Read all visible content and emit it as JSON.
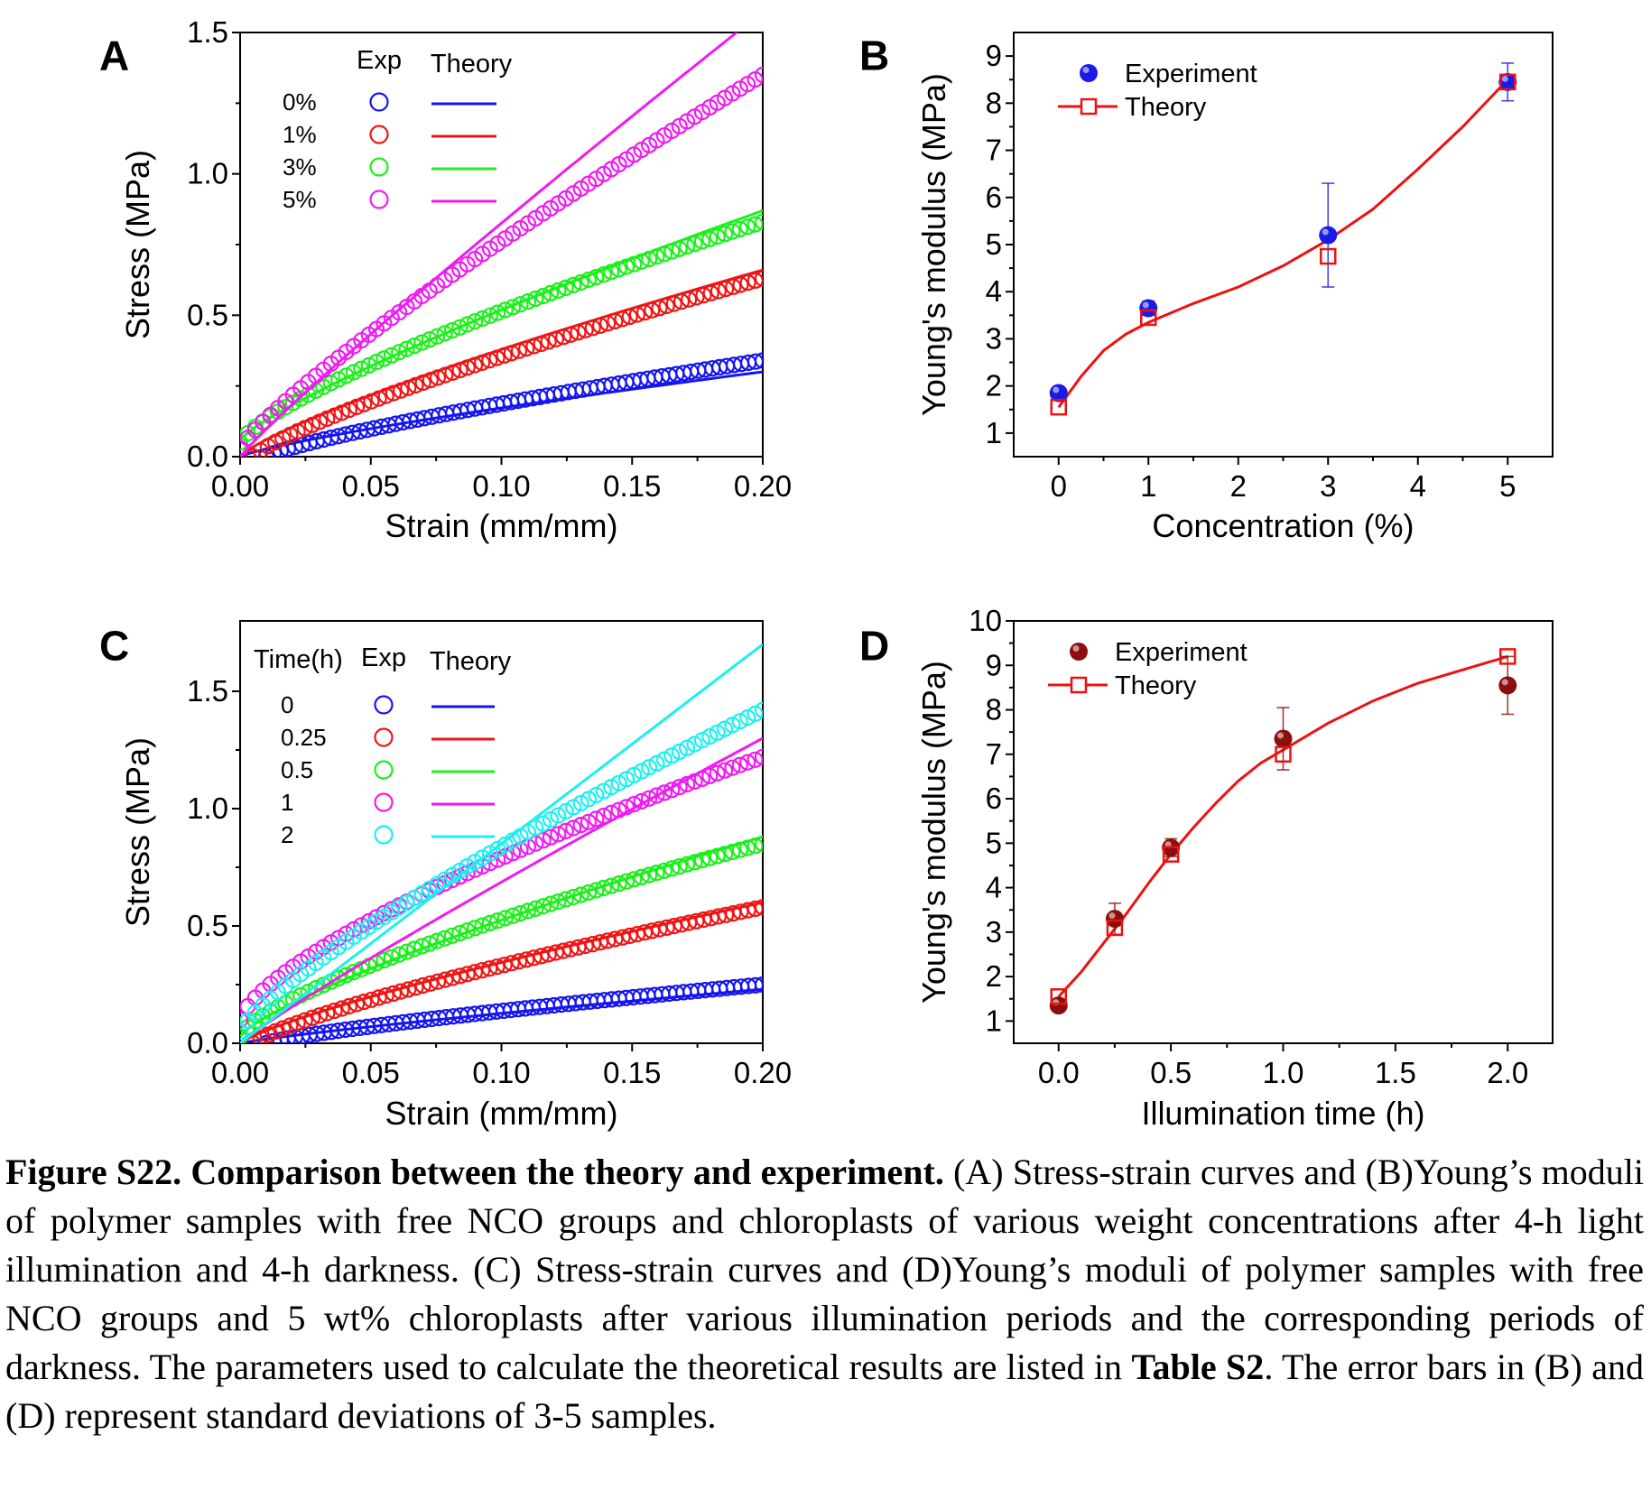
{
  "caption": {
    "lead": "Figure S22. Comparison between the theory and experiment.",
    "part1": " (A) Stress-strain curves and (B)Young’s moduli of polymer samples with free NCO groups and chloroplasts of various weight concentrations after 4-h light illumination and 4-h darkness. (C) Stress-strain curves and (D)Young’s moduli of polymer samples with free NCO groups and 5 wt% chloroplasts after various illumination periods and the corresponding periods of darkness. The parameters used to calculate the theoretical results are listed in ",
    "table_ref": "Table S2",
    "part2": ". The error bars in (B) and (D) represent standard deviations of 3-5 samples."
  },
  "colors": {
    "blue": "#1515f0",
    "red": "#f01515",
    "green": "#1bf01b",
    "magenta": "#f01bf0",
    "cyan": "#1bf0f0",
    "darkred": "#8b0f0f",
    "exp_blue": "#1a1ae6",
    "theory_red": "#ee1111"
  },
  "chart_data": [
    {
      "panel": "A",
      "type": "line",
      "xlabel": "Strain (mm/mm)",
      "ylabel": "Stress (MPa)",
      "xlim": [
        0,
        0.2
      ],
      "ylim": [
        0,
        1.5
      ],
      "xticks": [
        "0.00",
        "0.05",
        "0.10",
        "0.15",
        "0.20"
      ],
      "yticks": [
        "0.0",
        "0.5",
        "1.0",
        "1.5"
      ],
      "legend_title": "",
      "legend_headers": [
        "Exp",
        "Theory"
      ],
      "series": [
        {
          "name": "0%",
          "color": "blue",
          "exp": {
            "x0": 0.01,
            "y0": 0.0,
            "x1": 0.2,
            "y1": 0.34,
            "p": 0.8
          },
          "theory": {
            "x0": 0.0,
            "y0": 0.0,
            "x1": 0.2,
            "y1": 0.3,
            "p": 0.8
          }
        },
        {
          "name": "1%",
          "color": "red",
          "exp": {
            "x0": 0.005,
            "y0": 0.0,
            "x1": 0.2,
            "y1": 0.63,
            "p": 0.8
          },
          "theory": {
            "x0": 0.0,
            "y0": 0.0,
            "x1": 0.2,
            "y1": 0.66,
            "p": 0.8
          }
        },
        {
          "name": "3%",
          "color": "green",
          "exp": {
            "x0": 0.0,
            "y0": 0.05,
            "x1": 0.2,
            "y1": 0.83,
            "p": 0.75
          },
          "theory": {
            "x0": 0.0,
            "y0": 0.06,
            "x1": 0.2,
            "y1": 0.87,
            "p": 0.82
          }
        },
        {
          "name": "5%",
          "color": "magenta",
          "exp": {
            "x0": 0.0,
            "y0": 0.03,
            "x1": 0.2,
            "y1": 1.35,
            "p": 0.85
          },
          "theory": {
            "x0": 0.0,
            "y0": 0.0,
            "x1": 0.19,
            "y1": 1.5,
            "p": 0.93
          }
        }
      ]
    },
    {
      "panel": "B",
      "type": "scatter",
      "xlabel": "Concentration (%)",
      "ylabel": "Young's modulus (MPa)",
      "xlim": [
        -0.5,
        5.5
      ],
      "ylim": [
        0.5,
        9.5
      ],
      "xticks": [
        "0",
        "1",
        "2",
        "3",
        "4",
        "5"
      ],
      "yticks": [
        "1",
        "2",
        "3",
        "4",
        "5",
        "6",
        "7",
        "8",
        "9"
      ],
      "legend": [
        "Experiment",
        "Theory"
      ],
      "experiment": {
        "x": [
          0,
          1,
          3,
          5
        ],
        "y": [
          1.85,
          3.65,
          5.2,
          8.45
        ],
        "err": [
          0.1,
          0.15,
          1.1,
          0.4
        ]
      },
      "theory_points": {
        "x": [
          0,
          1,
          3,
          5
        ],
        "y": [
          1.55,
          3.45,
          4.75,
          8.45
        ]
      },
      "theory_curve": {
        "x": [
          0,
          0.25,
          0.5,
          0.75,
          1,
          1.5,
          2,
          2.5,
          3,
          3.5,
          4,
          4.5,
          5
        ],
        "y": [
          1.55,
          2.2,
          2.75,
          3.1,
          3.35,
          3.75,
          4.1,
          4.55,
          5.1,
          5.75,
          6.6,
          7.5,
          8.5
        ]
      }
    },
    {
      "panel": "C",
      "type": "line",
      "xlabel": "Strain (mm/mm)",
      "ylabel": "Stress (MPa)",
      "xlim": [
        0,
        0.2
      ],
      "ylim": [
        0,
        1.8
      ],
      "xticks": [
        "0.00",
        "0.05",
        "0.10",
        "0.15",
        "0.20"
      ],
      "yticks": [
        "0.0",
        "0.5",
        "1.0",
        "1.5"
      ],
      "legend_title": "Time(h)",
      "legend_headers": [
        "Exp",
        "Theory"
      ],
      "series": [
        {
          "name": "0",
          "color": "blue",
          "exp": {
            "x0": 0.01,
            "y0": 0.0,
            "x1": 0.2,
            "y1": 0.25,
            "p": 0.8
          },
          "theory": {
            "x0": 0.0,
            "y0": 0.0,
            "x1": 0.2,
            "y1": 0.23,
            "p": 0.85
          }
        },
        {
          "name": "0.25",
          "color": "red",
          "exp": {
            "x0": 0.005,
            "y0": 0.0,
            "x1": 0.2,
            "y1": 0.58,
            "p": 0.78
          },
          "theory": {
            "x0": 0.0,
            "y0": 0.0,
            "x1": 0.2,
            "y1": 0.6,
            "p": 0.8
          }
        },
        {
          "name": "0.5",
          "color": "green",
          "exp": {
            "x0": 0.0,
            "y0": 0.03,
            "x1": 0.2,
            "y1": 0.85,
            "p": 0.72
          },
          "theory": {
            "x0": 0.0,
            "y0": 0.03,
            "x1": 0.2,
            "y1": 0.88,
            "p": 0.78
          }
        },
        {
          "name": "1",
          "color": "magenta",
          "exp": {
            "x0": 0.0,
            "y0": 0.1,
            "x1": 0.2,
            "y1": 1.22,
            "p": 0.7
          },
          "theory": {
            "x0": 0.0,
            "y0": 0.0,
            "x1": 0.2,
            "y1": 1.3,
            "p": 0.92
          }
        },
        {
          "name": "2",
          "color": "cyan",
          "exp": {
            "x0": 0.0,
            "y0": 0.05,
            "x1": 0.2,
            "y1": 1.42,
            "p": 0.8
          },
          "theory": {
            "x0": 0.0,
            "y0": 0.0,
            "x1": 0.2,
            "y1": 1.7,
            "p": 1.0
          }
        }
      ]
    },
    {
      "panel": "D",
      "type": "scatter",
      "xlabel": "Illumination time (h)",
      "ylabel": "Young's modulus (MPa)",
      "xlim": [
        -0.2,
        2.2
      ],
      "ylim": [
        0.5,
        10
      ],
      "xticks": [
        "0.0",
        "0.5",
        "1.0",
        "1.5",
        "2.0"
      ],
      "yticks": [
        "1",
        "2",
        "3",
        "4",
        "5",
        "6",
        "7",
        "8",
        "9",
        "10"
      ],
      "legend": [
        "Experiment",
        "Theory"
      ],
      "experiment": {
        "x": [
          0,
          0.25,
          0.5,
          1,
          2
        ],
        "y": [
          1.35,
          3.3,
          4.9,
          7.35,
          8.55
        ],
        "err": [
          0.1,
          0.35,
          0.2,
          0.7,
          0.65
        ]
      },
      "theory_points": {
        "x": [
          0,
          0.25,
          0.5,
          1,
          2
        ],
        "y": [
          1.55,
          3.1,
          4.75,
          7.0,
          9.2
        ]
      },
      "theory_curve": {
        "x": [
          0,
          0.1,
          0.2,
          0.3,
          0.4,
          0.5,
          0.6,
          0.7,
          0.8,
          0.9,
          1.0,
          1.2,
          1.4,
          1.6,
          1.8,
          2.0
        ],
        "y": [
          1.55,
          2.1,
          2.75,
          3.4,
          4.1,
          4.75,
          5.35,
          5.9,
          6.4,
          6.8,
          7.1,
          7.7,
          8.2,
          8.6,
          8.9,
          9.2
        ]
      }
    }
  ]
}
